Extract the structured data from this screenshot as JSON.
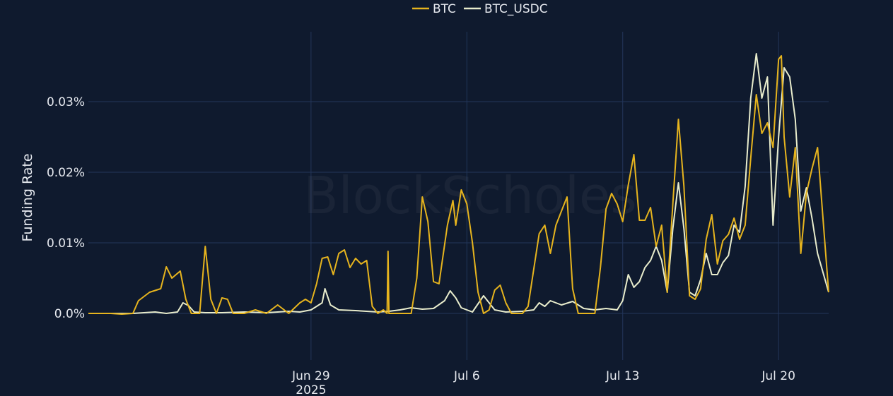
{
  "chart_data": {
    "type": "line",
    "ylabel": "Funding Rate",
    "y_unit": "%",
    "yticks": [
      {
        "value": 0.0,
        "label": "0.0%"
      },
      {
        "value": 0.01,
        "label": "0.01%"
      },
      {
        "value": 0.02,
        "label": "0.02%"
      },
      {
        "value": 0.03,
        "label": "0.03%"
      }
    ],
    "ylim": [
      -0.0066,
      0.0399
    ],
    "xlim": [
      "2025-06-19",
      "2025-07-22T06:00"
    ],
    "xticks": [
      {
        "date": "2025-06-29",
        "label": "Jun 29",
        "sublabel": "2025"
      },
      {
        "date": "2025-07-06",
        "label": "Jul 6",
        "sublabel": ""
      },
      {
        "date": "2025-07-13",
        "label": "Jul 13",
        "sublabel": ""
      },
      {
        "date": "2025-07-20",
        "label": "Jul 20",
        "sublabel": ""
      }
    ],
    "grid": true,
    "legend_position": "top-center",
    "watermark": "BlockScholes",
    "series": [
      {
        "name": "BTC",
        "color": "#e6b41e",
        "points": [
          [
            "2025-06-19T00:00",
            0.0
          ],
          [
            "2025-06-20T00:00",
            0.0
          ],
          [
            "2025-06-20T12:00",
            -0.0001
          ],
          [
            "2025-06-21T00:00",
            0.0
          ],
          [
            "2025-06-21T06:00",
            0.0018
          ],
          [
            "2025-06-21T18:00",
            0.003
          ],
          [
            "2025-06-22T06:00",
            0.0035
          ],
          [
            "2025-06-22T12:00",
            0.0066
          ],
          [
            "2025-06-22T18:00",
            0.005
          ],
          [
            "2025-06-23T03:00",
            0.006
          ],
          [
            "2025-06-23T09:00",
            0.002
          ],
          [
            "2025-06-23T15:00",
            0.0
          ],
          [
            "2025-06-24T00:00",
            0.0
          ],
          [
            "2025-06-24T06:00",
            0.0095
          ],
          [
            "2025-06-24T12:00",
            0.002
          ],
          [
            "2025-06-24T18:00",
            0.0
          ],
          [
            "2025-06-25T00:00",
            0.0022
          ],
          [
            "2025-06-25T06:00",
            0.002
          ],
          [
            "2025-06-25T12:00",
            0.0
          ],
          [
            "2025-06-26T00:00",
            0.0
          ],
          [
            "2025-06-26T12:00",
            0.0005
          ],
          [
            "2025-06-27T00:00",
            0.0
          ],
          [
            "2025-06-27T12:00",
            0.0012
          ],
          [
            "2025-06-28T00:00",
            0.0
          ],
          [
            "2025-06-28T12:00",
            0.0015
          ],
          [
            "2025-06-28T18:00",
            0.002
          ],
          [
            "2025-06-29T00:00",
            0.0015
          ],
          [
            "2025-06-29T06:00",
            0.0042
          ],
          [
            "2025-06-29T12:00",
            0.0078
          ],
          [
            "2025-06-29T18:00",
            0.008
          ],
          [
            "2025-06-30T00:00",
            0.0055
          ],
          [
            "2025-06-30T06:00",
            0.0085
          ],
          [
            "2025-06-30T12:00",
            0.009
          ],
          [
            "2025-06-30T18:00",
            0.0065
          ],
          [
            "2025-07-01T00:00",
            0.0078
          ],
          [
            "2025-07-01T06:00",
            0.007
          ],
          [
            "2025-07-01T12:00",
            0.0075
          ],
          [
            "2025-07-01T18:00",
            0.001
          ],
          [
            "2025-07-02T00:00",
            0.0
          ],
          [
            "2025-07-02T06:00",
            0.0005
          ],
          [
            "2025-07-02T10:00",
            0.0
          ],
          [
            "2025-07-02T11:00",
            0.0088
          ],
          [
            "2025-07-02T12:00",
            0.0
          ],
          [
            "2025-07-03T00:00",
            0.0
          ],
          [
            "2025-07-03T12:00",
            0.0
          ],
          [
            "2025-07-03T18:00",
            0.005
          ],
          [
            "2025-07-04T00:00",
            0.0165
          ],
          [
            "2025-07-04T06:00",
            0.013
          ],
          [
            "2025-07-04T12:00",
            0.0045
          ],
          [
            "2025-07-04T18:00",
            0.0042
          ],
          [
            "2025-07-05T03:00",
            0.0125
          ],
          [
            "2025-07-05T09:00",
            0.016
          ],
          [
            "2025-07-05T12:00",
            0.0125
          ],
          [
            "2025-07-05T18:00",
            0.0175
          ],
          [
            "2025-07-06T00:00",
            0.0155
          ],
          [
            "2025-07-06T06:00",
            0.01
          ],
          [
            "2025-07-06T12:00",
            0.003
          ],
          [
            "2025-07-06T18:00",
            0.0
          ],
          [
            "2025-07-07T00:00",
            0.0005
          ],
          [
            "2025-07-07T06:00",
            0.0033
          ],
          [
            "2025-07-07T12:00",
            0.004
          ],
          [
            "2025-07-07T18:00",
            0.0015
          ],
          [
            "2025-07-08T00:00",
            0.0
          ],
          [
            "2025-07-08T06:00",
            0.0
          ],
          [
            "2025-07-08T12:00",
            0.0
          ],
          [
            "2025-07-08T18:00",
            0.001
          ],
          [
            "2025-07-09T00:00",
            0.0062
          ],
          [
            "2025-07-09T06:00",
            0.0113
          ],
          [
            "2025-07-09T12:00",
            0.0125
          ],
          [
            "2025-07-09T18:00",
            0.0085
          ],
          [
            "2025-07-10T00:00",
            0.0125
          ],
          [
            "2025-07-10T06:00",
            0.0145
          ],
          [
            "2025-07-10T12:00",
            0.0165
          ],
          [
            "2025-07-10T18:00",
            0.0035
          ],
          [
            "2025-07-11T00:00",
            0.0
          ],
          [
            "2025-07-11T06:00",
            0.0
          ],
          [
            "2025-07-11T18:00",
            0.0
          ],
          [
            "2025-07-12T00:00",
            0.0065
          ],
          [
            "2025-07-12T06:00",
            0.0148
          ],
          [
            "2025-07-12T12:00",
            0.017
          ],
          [
            "2025-07-12T18:00",
            0.0155
          ],
          [
            "2025-07-13T00:00",
            0.013
          ],
          [
            "2025-07-13T06:00",
            0.0182
          ],
          [
            "2025-07-13T12:00",
            0.0225
          ],
          [
            "2025-07-13T18:00",
            0.0132
          ],
          [
            "2025-07-14T00:00",
            0.0132
          ],
          [
            "2025-07-14T06:00",
            0.015
          ],
          [
            "2025-07-14T12:00",
            0.0095
          ],
          [
            "2025-07-14T18:00",
            0.0125
          ],
          [
            "2025-07-15T00:00",
            0.003
          ],
          [
            "2025-07-15T06:00",
            0.0155
          ],
          [
            "2025-07-15T12:00",
            0.0275
          ],
          [
            "2025-07-15T18:00",
            0.018
          ],
          [
            "2025-07-16T00:00",
            0.0025
          ],
          [
            "2025-07-16T06:00",
            0.002
          ],
          [
            "2025-07-16T12:00",
            0.0035
          ],
          [
            "2025-07-16T18:00",
            0.0105
          ],
          [
            "2025-07-17T00:00",
            0.014
          ],
          [
            "2025-07-17T06:00",
            0.007
          ],
          [
            "2025-07-17T12:00",
            0.0103
          ],
          [
            "2025-07-17T18:00",
            0.0112
          ],
          [
            "2025-07-18T00:00",
            0.0135
          ],
          [
            "2025-07-18T06:00",
            0.0105
          ],
          [
            "2025-07-18T12:00",
            0.0125
          ],
          [
            "2025-07-18T18:00",
            0.022
          ],
          [
            "2025-07-19T00:00",
            0.031
          ],
          [
            "2025-07-19T06:00",
            0.0255
          ],
          [
            "2025-07-19T12:00",
            0.027
          ],
          [
            "2025-07-19T18:00",
            0.0235
          ],
          [
            "2025-07-20T00:00",
            0.036
          ],
          [
            "2025-07-20T03:00",
            0.0365
          ],
          [
            "2025-07-20T06:00",
            0.025
          ],
          [
            "2025-07-20T12:00",
            0.0165
          ],
          [
            "2025-07-20T18:00",
            0.0235
          ],
          [
            "2025-07-21T00:00",
            0.0085
          ],
          [
            "2025-07-21T06:00",
            0.017
          ],
          [
            "2025-07-21T12:00",
            0.0205
          ],
          [
            "2025-07-21T18:00",
            0.0235
          ],
          [
            "2025-07-22T06:00",
            0.003
          ]
        ]
      },
      {
        "name": "BTC_USDC",
        "color": "#e8eccc",
        "points": [
          [
            "2025-06-19T00:00",
            0.0
          ],
          [
            "2025-06-20T00:00",
            0.0
          ],
          [
            "2025-06-21T00:00",
            0.0
          ],
          [
            "2025-06-21T12:00",
            0.0001
          ],
          [
            "2025-06-22T00:00",
            0.0002
          ],
          [
            "2025-06-22T12:00",
            0.0
          ],
          [
            "2025-06-23T00:00",
            0.0002
          ],
          [
            "2025-06-23T06:00",
            0.0015
          ],
          [
            "2025-06-23T12:00",
            0.0011
          ],
          [
            "2025-06-23T18:00",
            0.0002
          ],
          [
            "2025-06-24T06:00",
            0.0001
          ],
          [
            "2025-06-25T00:00",
            0.0001
          ],
          [
            "2025-06-26T00:00",
            0.0002
          ],
          [
            "2025-06-27T00:00",
            0.0001
          ],
          [
            "2025-06-28T00:00",
            0.0003
          ],
          [
            "2025-06-28T12:00",
            0.0002
          ],
          [
            "2025-06-29T00:00",
            0.0005
          ],
          [
            "2025-06-29T06:00",
            0.001
          ],
          [
            "2025-06-29T12:00",
            0.0015
          ],
          [
            "2025-06-29T15:00",
            0.0035
          ],
          [
            "2025-06-29T21:00",
            0.0012
          ],
          [
            "2025-06-30T06:00",
            0.0005
          ],
          [
            "2025-07-01T00:00",
            0.0004
          ],
          [
            "2025-07-02T00:00",
            0.0002
          ],
          [
            "2025-07-02T12:00",
            0.0003
          ],
          [
            "2025-07-03T00:00",
            0.0005
          ],
          [
            "2025-07-03T12:00",
            0.0008
          ],
          [
            "2025-07-04T00:00",
            0.0006
          ],
          [
            "2025-07-04T12:00",
            0.0007
          ],
          [
            "2025-07-05T00:00",
            0.0018
          ],
          [
            "2025-07-05T06:00",
            0.0032
          ],
          [
            "2025-07-05T12:00",
            0.0022
          ],
          [
            "2025-07-05T18:00",
            0.0008
          ],
          [
            "2025-07-06T06:00",
            0.0002
          ],
          [
            "2025-07-06T18:00",
            0.0025
          ],
          [
            "2025-07-07T06:00",
            0.0005
          ],
          [
            "2025-07-07T18:00",
            0.0002
          ],
          [
            "2025-07-08T12:00",
            0.0003
          ],
          [
            "2025-07-09T00:00",
            0.0005
          ],
          [
            "2025-07-09T06:00",
            0.0015
          ],
          [
            "2025-07-09T12:00",
            0.001
          ],
          [
            "2025-07-09T18:00",
            0.0018
          ],
          [
            "2025-07-10T06:00",
            0.0012
          ],
          [
            "2025-07-10T18:00",
            0.0017
          ],
          [
            "2025-07-11T06:00",
            0.0007
          ],
          [
            "2025-07-11T18:00",
            0.0005
          ],
          [
            "2025-07-12T06:00",
            0.0007
          ],
          [
            "2025-07-12T18:00",
            0.0005
          ],
          [
            "2025-07-13T00:00",
            0.0018
          ],
          [
            "2025-07-13T06:00",
            0.0055
          ],
          [
            "2025-07-13T12:00",
            0.0037
          ],
          [
            "2025-07-13T18:00",
            0.0045
          ],
          [
            "2025-07-14T00:00",
            0.0065
          ],
          [
            "2025-07-14T06:00",
            0.0075
          ],
          [
            "2025-07-14T12:00",
            0.0095
          ],
          [
            "2025-07-14T18:00",
            0.0075
          ],
          [
            "2025-07-15T00:00",
            0.003
          ],
          [
            "2025-07-15T06:00",
            0.012
          ],
          [
            "2025-07-15T12:00",
            0.0185
          ],
          [
            "2025-07-15T18:00",
            0.012
          ],
          [
            "2025-07-16T00:00",
            0.003
          ],
          [
            "2025-07-16T06:00",
            0.0025
          ],
          [
            "2025-07-16T12:00",
            0.0048
          ],
          [
            "2025-07-16T18:00",
            0.0085
          ],
          [
            "2025-07-17T00:00",
            0.0055
          ],
          [
            "2025-07-17T06:00",
            0.0055
          ],
          [
            "2025-07-17T12:00",
            0.0072
          ],
          [
            "2025-07-17T18:00",
            0.0082
          ],
          [
            "2025-07-18T00:00",
            0.0125
          ],
          [
            "2025-07-18T06:00",
            0.0115
          ],
          [
            "2025-07-18T12:00",
            0.018
          ],
          [
            "2025-07-18T18:00",
            0.0305
          ],
          [
            "2025-07-19T00:00",
            0.0368
          ],
          [
            "2025-07-19T06:00",
            0.0305
          ],
          [
            "2025-07-19T12:00",
            0.0335
          ],
          [
            "2025-07-19T18:00",
            0.0125
          ],
          [
            "2025-07-20T00:00",
            0.025
          ],
          [
            "2025-07-20T06:00",
            0.0348
          ],
          [
            "2025-07-20T12:00",
            0.0335
          ],
          [
            "2025-07-20T18:00",
            0.0275
          ],
          [
            "2025-07-21T00:00",
            0.0145
          ],
          [
            "2025-07-21T06:00",
            0.0178
          ],
          [
            "2025-07-21T12:00",
            0.0135
          ],
          [
            "2025-07-21T18:00",
            0.0085
          ],
          [
            "2025-07-22T06:00",
            0.003
          ]
        ]
      }
    ]
  }
}
